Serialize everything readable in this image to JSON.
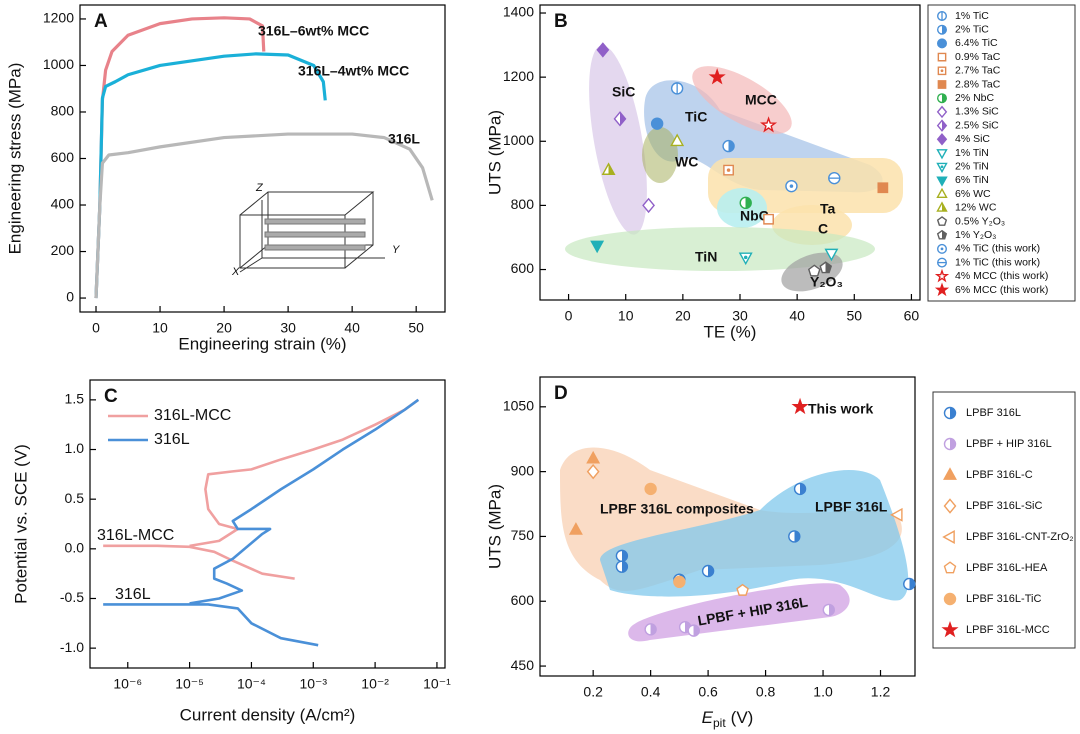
{
  "chart_data": [
    {
      "type": "line",
      "panel": "A",
      "xlabel": "Engineering strain (%)",
      "ylabel": "Engineering stress (MPa)",
      "xlim": [
        -2.5,
        54.5
      ],
      "ylim": [
        -60,
        1260
      ],
      "xticks": [
        0,
        10,
        20,
        30,
        40,
        50
      ],
      "yticks": [
        0,
        200,
        400,
        600,
        800,
        1000,
        1200
      ],
      "inset_axes": [
        "Z",
        "Y",
        "X"
      ],
      "series": [
        {
          "name": "316L–6wt% MCC",
          "color": "#e8828a",
          "x": [
            0,
            0.6,
            1,
            1.5,
            2.5,
            5,
            10,
            15,
            20,
            24,
            26,
            26.2
          ],
          "values": [
            0,
            400,
            850,
            980,
            1060,
            1130,
            1180,
            1200,
            1205,
            1200,
            1170,
            1060
          ]
        },
        {
          "name": "316L–4wt% MCC",
          "color": "#1ab0d8",
          "x": [
            0,
            0.6,
            1,
            1.5,
            3,
            5,
            10,
            20,
            25,
            30,
            34,
            35.5,
            35.8
          ],
          "values": [
            0,
            400,
            860,
            910,
            930,
            960,
            1000,
            1040,
            1050,
            1045,
            1000,
            930,
            850
          ]
        },
        {
          "name": "316L",
          "color": "#b8b8b8",
          "x": [
            0,
            0.6,
            1,
            2,
            5,
            10,
            20,
            30,
            40,
            45,
            49,
            51,
            52.5
          ],
          "values": [
            0,
            400,
            580,
            615,
            625,
            650,
            690,
            705,
            705,
            690,
            640,
            560,
            420
          ]
        }
      ]
    },
    {
      "type": "scatter",
      "panel": "B",
      "xlabel": "TE (%)",
      "ylabel": "UTS (MPa)",
      "xlim": [
        -5,
        61.5
      ],
      "ylim": [
        505,
        1425
      ],
      "xticks": [
        0,
        10,
        20,
        30,
        40,
        50,
        60
      ],
      "yticks": [
        600,
        800,
        1000,
        1200,
        1400
      ],
      "legend": "outside right",
      "annotations": [
        "SiC",
        "TiC",
        "WC",
        "MCC",
        "NbC",
        "TiN",
        "Ta",
        "C",
        "Y₂O₃"
      ],
      "series": [
        {
          "name": "1% TiC",
          "color": "#4a90d8",
          "marker": "circle",
          "fill": "vbar",
          "x": [
            19
          ],
          "values": [
            1165
          ]
        },
        {
          "name": "2% TiC",
          "color": "#4a90d8",
          "marker": "circle",
          "fill": "half",
          "x": [
            28
          ],
          "values": [
            985
          ]
        },
        {
          "name": "6.4% TiC",
          "color": "#4a90d8",
          "marker": "circle",
          "fill": "full",
          "x": [
            15.5
          ],
          "values": [
            1055
          ]
        },
        {
          "name": "0.9% TaC",
          "color": "#e08850",
          "marker": "square",
          "fill": "open",
          "x": [
            35
          ],
          "values": [
            757
          ]
        },
        {
          "name": "2.7% TaC",
          "color": "#e08850",
          "marker": "square",
          "fill": "dot",
          "x": [
            28
          ],
          "values": [
            910
          ]
        },
        {
          "name": "2.8% TaC",
          "color": "#e08850",
          "marker": "square",
          "fill": "full",
          "x": [
            55
          ],
          "values": [
            855
          ]
        },
        {
          "name": "2% NbC",
          "color": "#30b050",
          "marker": "circle",
          "fill": "half",
          "x": [
            31
          ],
          "values": [
            808
          ]
        },
        {
          "name": "1.3% SiC",
          "color": "#9060c8",
          "marker": "diamond",
          "fill": "open",
          "x": [
            14
          ],
          "values": [
            800
          ]
        },
        {
          "name": "2.5% SiC",
          "color": "#9060c8",
          "marker": "diamond",
          "fill": "half",
          "x": [
            9
          ],
          "values": [
            1070
          ]
        },
        {
          "name": "4% SiC",
          "color": "#9060c8",
          "marker": "diamond",
          "fill": "full",
          "x": [
            6
          ],
          "values": [
            1285
          ]
        },
        {
          "name": "1% TiN",
          "color": "#20b0b8",
          "marker": "triangle-down",
          "fill": "open",
          "x": [
            46
          ],
          "values": [
            650
          ]
        },
        {
          "name": "2% TiN",
          "color": "#20b0b8",
          "marker": "triangle-down",
          "fill": "dot",
          "x": [
            31
          ],
          "values": [
            638
          ]
        },
        {
          "name": "6% TiN",
          "color": "#20b0b8",
          "marker": "triangle-down",
          "fill": "full",
          "x": [
            5
          ],
          "values": [
            675
          ]
        },
        {
          "name": "6% WC",
          "color": "#a8b020",
          "marker": "triangle",
          "fill": "open",
          "x": [
            19
          ],
          "values": [
            1000
          ]
        },
        {
          "name": "12% WC",
          "color": "#a8b020",
          "marker": "triangle",
          "fill": "half",
          "x": [
            7
          ],
          "values": [
            910
          ]
        },
        {
          "name": "0.5% Y₂O₃",
          "color": "#606060",
          "marker": "pentagon",
          "fill": "open",
          "x": [
            43
          ],
          "values": [
            595
          ]
        },
        {
          "name": "1% Y₂O₃",
          "color": "#606060",
          "marker": "pentagon",
          "fill": "half",
          "x": [
            45
          ],
          "values": [
            605
          ]
        },
        {
          "name": "4% TiC (this work)",
          "color": "#4a90d8",
          "marker": "circle",
          "fill": "dot",
          "x": [
            39
          ],
          "values": [
            860
          ]
        },
        {
          "name": "1% TiC (this work)",
          "color": "#4a90d8",
          "marker": "circle",
          "fill": "hbar",
          "x": [
            46.5
          ],
          "values": [
            885
          ]
        },
        {
          "name": "4% MCC (this work)",
          "color": "#e02020",
          "marker": "star",
          "fill": "open",
          "x": [
            35
          ],
          "values": [
            1050
          ]
        },
        {
          "name": "6% MCC (this work)",
          "color": "#e02020",
          "marker": "star",
          "fill": "full",
          "x": [
            26
          ],
          "values": [
            1200
          ]
        }
      ]
    },
    {
      "type": "line",
      "panel": "C",
      "xlabel": "Current density (A/cm²)",
      "ylabel": "Potential vs. SCE (V)",
      "xscale": "log",
      "xlim": [
        2.45e-07,
        0.135
      ],
      "ylim": [
        -1.2,
        1.7
      ],
      "xticks": [
        {
          "value": 1e-06,
          "label": "10⁻⁶"
        },
        {
          "value": 1e-05,
          "label": "10⁻⁵"
        },
        {
          "value": 0.0001,
          "label": "10⁻⁴"
        },
        {
          "value": 0.001,
          "label": "10⁻³"
        },
        {
          "value": 0.01,
          "label": "10⁻²"
        },
        {
          "value": 0.1,
          "label": "10⁻¹"
        }
      ],
      "yticks": [
        {
          "value": -1,
          "label": "-1.0"
        },
        -0.5,
        {
          "value": 0,
          "label": "0.0"
        },
        0.5,
        {
          "value": 1,
          "label": "1.0"
        },
        1.5
      ],
      "legend": "upper left",
      "annotations": [
        "316L-MCC",
        "316L"
      ],
      "series": [
        {
          "name": "316L-MCC",
          "color": "#f0a0a0",
          "x": [
            0.0005,
            0.00015,
            5e-05,
            2.5e-05,
            1e-05,
            3e-06,
            4e-07,
            null,
            1e-05,
            3e-05,
            6e-05,
            3e-05,
            2e-05,
            1.8e-05,
            2e-05,
            5e-05,
            0.0001,
            0.0003,
            0.001,
            0.003,
            0.01,
            0.03,
            0.05
          ],
          "values": [
            -0.3,
            -0.25,
            -0.12,
            -0.03,
            0.02,
            0.03,
            0.03,
            null,
            0.03,
            0.08,
            0.2,
            0.25,
            0.4,
            0.6,
            0.75,
            0.78,
            0.8,
            0.9,
            1.0,
            1.1,
            1.25,
            1.4,
            1.5
          ]
        },
        {
          "name": "316L",
          "color": "#4a90d8",
          "x": [
            0.0012,
            0.0003,
            0.0001,
            6e-05,
            2e-05,
            1e-06,
            4e-07,
            null,
            1e-05,
            3e-05,
            7e-05,
            4e-05,
            2.5e-05,
            2.5e-05,
            5e-05,
            0.00015,
            0.0002,
            6e-05,
            5e-05,
            0.0001,
            0.0003,
            0.001,
            0.003,
            0.01,
            0.03,
            0.05
          ],
          "values": [
            -0.97,
            -0.9,
            -0.75,
            -0.6,
            -0.56,
            -0.56,
            -0.56,
            null,
            -0.55,
            -0.5,
            -0.42,
            -0.35,
            -0.3,
            -0.2,
            -0.1,
            0.15,
            0.2,
            0.2,
            0.28,
            0.4,
            0.6,
            0.8,
            1.0,
            1.2,
            1.4,
            1.5
          ]
        }
      ]
    },
    {
      "type": "scatter",
      "panel": "D",
      "xlabel": [
        "E",
        "pit",
        "(V)"
      ],
      "ylabel": "UTS (MPa)",
      "xlim": [
        0.015,
        1.32
      ],
      "ylim": [
        427,
        1119
      ],
      "xticks": [
        0.2,
        0.4,
        0.6,
        0.8,
        {
          "value": 1,
          "label": "1.0"
        },
        1.2
      ],
      "yticks": [
        450,
        600,
        750,
        900,
        1050
      ],
      "legend": "outside right",
      "annotations": [
        "This work",
        "LPBF 316L composites",
        "LPBF 316L",
        "LPBF + HIP 316L"
      ],
      "series": [
        {
          "name": "LPBF 316L",
          "color": "#3a80d0",
          "marker": "circle",
          "fill": "half",
          "x": [
            0.3,
            0.3,
            0.5,
            0.6,
            0.9,
            0.92,
            1.3
          ],
          "values": [
            705,
            680,
            650,
            670,
            750,
            860,
            640
          ]
        },
        {
          "name": "LPBF + HIP 316L",
          "color": "#c0a0e0",
          "marker": "circle",
          "fill": "half",
          "x": [
            0.4,
            0.52,
            0.55,
            1.02
          ],
          "values": [
            535,
            540,
            532,
            580
          ]
        },
        {
          "name": "LPBF 316L-C",
          "color": "#f0a060",
          "marker": "triangle",
          "fill": "full",
          "x": [
            0.2,
            0.14
          ],
          "values": [
            930,
            765
          ]
        },
        {
          "name": "LPBF 316L-SiC",
          "color": "#f0a060",
          "marker": "diamond",
          "fill": "open",
          "x": [
            0.2
          ],
          "values": [
            900
          ]
        },
        {
          "name": "LPBF 316L-CNT-ZrO₂",
          "color": "#f0a060",
          "marker": "triangle-left",
          "fill": "open",
          "x": [
            1.26
          ],
          "values": [
            800
          ]
        },
        {
          "name": "LPBF 316L-HEA",
          "color": "#f0a060",
          "marker": "pentagon",
          "fill": "open",
          "x": [
            0.72
          ],
          "values": [
            625
          ]
        },
        {
          "name": "LPBF 316L-TiC",
          "color": "#f5b070",
          "marker": "circle",
          "fill": "full",
          "x": [
            0.4,
            0.5
          ],
          "values": [
            860,
            645
          ]
        },
        {
          "name": "LPBF 316L-MCC",
          "color": "#e02020",
          "marker": "star",
          "fill": "full",
          "x": [
            0.92
          ],
          "values": [
            1050
          ]
        }
      ]
    }
  ]
}
